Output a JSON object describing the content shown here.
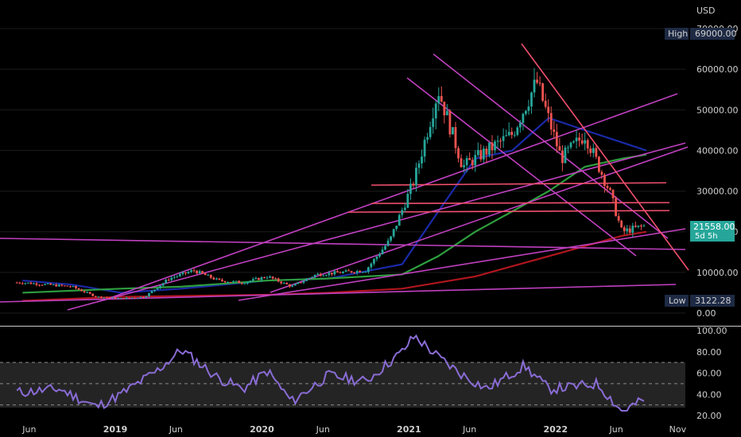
{
  "currency": "USD",
  "price_axis": {
    "ticks": [
      "70000.00",
      "60000.00",
      "50000.00",
      "40000.00",
      "30000.00",
      "20000.00",
      "10000.00",
      "0.00"
    ],
    "tick_values": [
      70000,
      60000,
      50000,
      40000,
      30000,
      20000,
      10000,
      0
    ]
  },
  "badges": {
    "high_label": "High",
    "high_value": "69000.00",
    "low_label": "Low",
    "low_value": "3122.28",
    "last_value": "21558.00",
    "countdown": "5d 5h"
  },
  "rsi_axis": {
    "ticks": [
      "100.00",
      "80.00",
      "60.00",
      "40.00",
      "20.00"
    ],
    "tick_values": [
      100,
      80,
      60,
      40,
      20
    ]
  },
  "time_axis": {
    "labels": [
      "Jun",
      "2019",
      "Jun",
      "2020",
      "Jun",
      "2021",
      "Jun",
      "2022",
      "Jun",
      "Nov"
    ],
    "dates": [
      "2018-06-01",
      "2019-01-01",
      "2019-06-01",
      "2020-01-01",
      "2020-06-01",
      "2021-01-01",
      "2021-06-01",
      "2022-01-01",
      "2022-06-01",
      "2022-11-01"
    ]
  },
  "colors": {
    "up": "#26a69a",
    "down": "#ef5350",
    "trendline": "#c040c0",
    "support": "#f0506e",
    "sma_blue": "#1a2aa8",
    "sma_green": "#2e9e3e",
    "sma_red": "#b0161e",
    "rsi": "#8a6cd6"
  },
  "chart_data": [
    {
      "type": "candlestick",
      "title": "",
      "ylabel": "USD",
      "ylim": [
        0,
        70000
      ],
      "interval": "weekly",
      "series": [
        {
          "name": "",
          "kind": "close",
          "x": [
            "2018-05",
            "2018-07",
            "2018-09",
            "2018-11",
            "2019-01",
            "2019-03",
            "2019-05",
            "2019-07",
            "2019-09",
            "2019-11",
            "2020-01",
            "2020-03",
            "2020-05",
            "2020-07",
            "2020-09",
            "2020-11",
            "2021-01",
            "2021-03",
            "2021-05",
            "2021-07",
            "2021-09",
            "2021-11",
            "2022-01",
            "2022-03",
            "2022-05",
            "2022-06",
            "2022-08"
          ],
          "y": [
            7500,
            7000,
            6500,
            4000,
            3600,
            4000,
            8500,
            10500,
            8000,
            7500,
            9000,
            6500,
            9500,
            10000,
            10500,
            18000,
            33000,
            55000,
            36000,
            40000,
            44000,
            57000,
            38000,
            44000,
            30000,
            20000,
            21558
          ]
        },
        {
          "name": "",
          "kind": "sma",
          "color": "blue",
          "x": [
            "2018-05",
            "2018-09",
            "2019-01",
            "2019-06",
            "2020-01",
            "2020-06",
            "2020-12",
            "2021-03",
            "2021-06",
            "2021-09",
            "2021-12",
            "2022-03",
            "2022-06",
            "2022-08"
          ],
          "y": [
            8000,
            7000,
            5000,
            6000,
            8000,
            8500,
            12000,
            25000,
            38000,
            40000,
            48000,
            45000,
            42000,
            40000
          ]
        },
        {
          "name": "",
          "kind": "sma",
          "color": "green",
          "x": [
            "2018-05",
            "2019-01",
            "2019-06",
            "2020-01",
            "2020-06",
            "2020-12",
            "2021-03",
            "2021-06",
            "2021-09",
            "2021-12",
            "2022-03",
            "2022-06",
            "2022-08"
          ],
          "y": [
            5000,
            6000,
            6500,
            8000,
            8500,
            9500,
            14000,
            20000,
            25000,
            30000,
            36000,
            38000,
            39000
          ]
        },
        {
          "name": "",
          "kind": "sma",
          "color": "red",
          "x": [
            "2018-05",
            "2019-01",
            "2020-01",
            "2020-06",
            "2020-12",
            "2021-06",
            "2021-12",
            "2022-06",
            "2022-08"
          ],
          "y": [
            3000,
            4000,
            4500,
            5000,
            6000,
            9000,
            14000,
            19000,
            20000
          ]
        }
      ]
    },
    {
      "type": "line",
      "title": "",
      "ylim": [
        20,
        100
      ],
      "reference_lines": [
        70,
        50,
        30
      ],
      "series": [
        {
          "name": "",
          "x": [
            "2018-05",
            "2018-08",
            "2018-11",
            "2019-01",
            "2019-04",
            "2019-06",
            "2019-09",
            "2019-11",
            "2020-01",
            "2020-03",
            "2020-06",
            "2020-09",
            "2020-12",
            "2021-01",
            "2021-03",
            "2021-05",
            "2021-07",
            "2021-10",
            "2021-12",
            "2022-02",
            "2022-04",
            "2022-06",
            "2022-08"
          ],
          "y": [
            42,
            45,
            28,
            40,
            62,
            82,
            55,
            45,
            62,
            33,
            58,
            52,
            80,
            95,
            75,
            58,
            45,
            67,
            45,
            47,
            50,
            24,
            36
          ]
        }
      ]
    }
  ]
}
